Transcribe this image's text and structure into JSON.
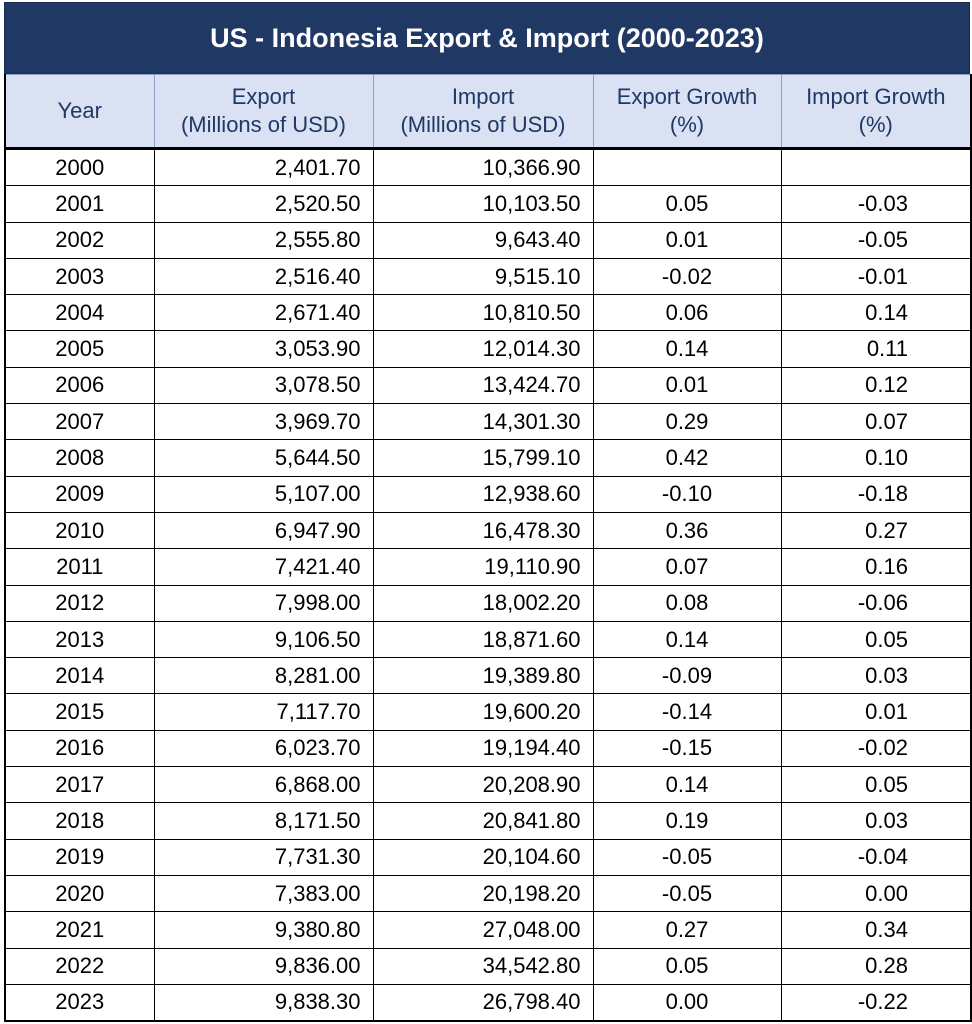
{
  "chart_data": {
    "type": "table",
    "title": "US - Indonesia Export & Import (2000-2023)",
    "columns": [
      {
        "line1": "Year",
        "line2": ""
      },
      {
        "line1": "Export",
        "line2": "(Millions of USD)"
      },
      {
        "line1": "Import",
        "line2": "(Millions of USD)"
      },
      {
        "line1": "Export Growth",
        "line2": "(%)"
      },
      {
        "line1": "Import Growth",
        "line2": "(%)"
      }
    ],
    "rows": [
      [
        "2000",
        "2,401.70",
        "10,366.90",
        "",
        ""
      ],
      [
        "2001",
        "2,520.50",
        "10,103.50",
        "0.05",
        "-0.03"
      ],
      [
        "2002",
        "2,555.80",
        "9,643.40",
        "0.01",
        "-0.05"
      ],
      [
        "2003",
        "2,516.40",
        "9,515.10",
        "-0.02",
        "-0.01"
      ],
      [
        "2004",
        "2,671.40",
        "10,810.50",
        "0.06",
        "0.14"
      ],
      [
        "2005",
        "3,053.90",
        "12,014.30",
        "0.14",
        "0.11"
      ],
      [
        "2006",
        "3,078.50",
        "13,424.70",
        "0.01",
        "0.12"
      ],
      [
        "2007",
        "3,969.70",
        "14,301.30",
        "0.29",
        "0.07"
      ],
      [
        "2008",
        "5,644.50",
        "15,799.10",
        "0.42",
        "0.10"
      ],
      [
        "2009",
        "5,107.00",
        "12,938.60",
        "-0.10",
        "-0.18"
      ],
      [
        "2010",
        "6,947.90",
        "16,478.30",
        "0.36",
        "0.27"
      ],
      [
        "2011",
        "7,421.40",
        "19,110.90",
        "0.07",
        "0.16"
      ],
      [
        "2012",
        "7,998.00",
        "18,002.20",
        "0.08",
        "-0.06"
      ],
      [
        "2013",
        "9,106.50",
        "18,871.60",
        "0.14",
        "0.05"
      ],
      [
        "2014",
        "8,281.00",
        "19,389.80",
        "-0.09",
        "0.03"
      ],
      [
        "2015",
        "7,117.70",
        "19,600.20",
        "-0.14",
        "0.01"
      ],
      [
        "2016",
        "6,023.70",
        "19,194.40",
        "-0.15",
        "-0.02"
      ],
      [
        "2017",
        "6,868.00",
        "20,208.90",
        "0.14",
        "0.05"
      ],
      [
        "2018",
        "8,171.50",
        "20,841.80",
        "0.19",
        "0.03"
      ],
      [
        "2019",
        "7,731.30",
        "20,104.60",
        "-0.05",
        "-0.04"
      ],
      [
        "2020",
        "7,383.00",
        "20,198.20",
        "-0.05",
        "0.00"
      ],
      [
        "2021",
        "9,380.80",
        "27,048.00",
        "0.27",
        "0.34"
      ],
      [
        "2022",
        "9,836.00",
        "34,542.80",
        "0.05",
        "0.28"
      ],
      [
        "2023",
        "9,838.30",
        "26,798.40",
        "0.00",
        "-0.22"
      ]
    ],
    "colors": {
      "title_bg": "#203864",
      "header_bg": "#d9e1f2",
      "header_text": "#1f3864"
    }
  }
}
